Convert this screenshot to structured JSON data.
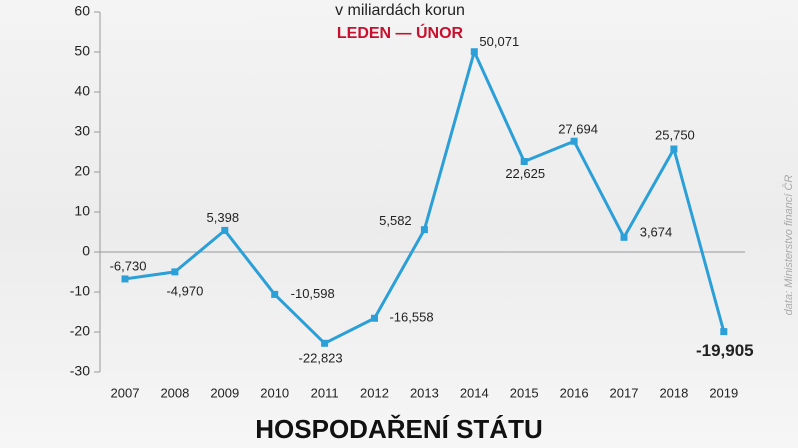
{
  "chart_data": {
    "type": "line",
    "subtitle": "v miliardách korun",
    "period": "LEDEN — ÚNOR",
    "title": "HOSPODAŘENÍ STÁTU",
    "source": "data: Ministerstvo financí ČR",
    "categories": [
      "2007",
      "2008",
      "2009",
      "2010",
      "2011",
      "2012",
      "2013",
      "2014",
      "2015",
      "2016",
      "2017",
      "2018",
      "2019"
    ],
    "series": [
      {
        "color": "#2b9fd8",
        "values": [
          -6.73,
          -4.97,
          5.398,
          -10.598,
          -22.823,
          -16.558,
          5.582,
          50.071,
          22.625,
          27.694,
          3.674,
          25.75,
          -19.905
        ],
        "value_labels": [
          "-6,730",
          "-4,970",
          "5,398",
          "-10,598",
          "-22,823",
          "-16,558",
          "5,582",
          "50,071",
          "22,625",
          "27,694",
          "3,674",
          "25,750",
          "-19,905"
        ]
      }
    ],
    "ylim": [
      -30,
      60
    ],
    "yticks": [
      -30,
      -20,
      -10,
      0,
      10,
      20,
      30,
      40,
      50,
      60
    ]
  }
}
